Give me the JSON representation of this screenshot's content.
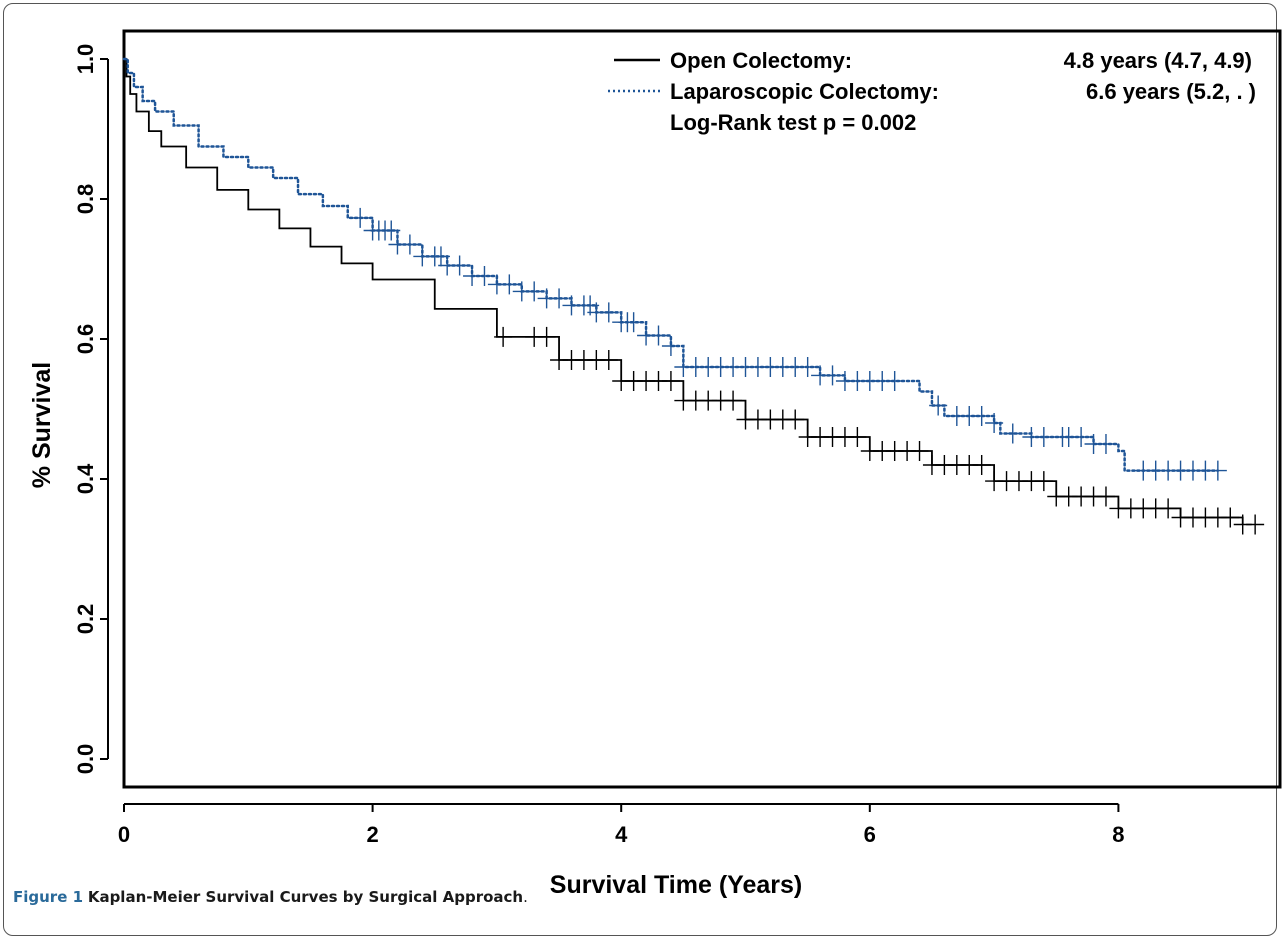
{
  "chart_data": {
    "type": "line",
    "xlabel": "Survival Time (Years)",
    "ylabel": "% Survival",
    "xlim": [
      0,
      9.3
    ],
    "ylim": [
      -0.04,
      1.04
    ],
    "xticks": [
      "0",
      "2",
      "4",
      "6",
      "8"
    ],
    "yticks": [
      "0.0",
      "0.2",
      "0.4",
      "0.6",
      "0.8",
      "1.0"
    ],
    "grid": false,
    "legend_position": "top-right",
    "annotation": "Log-Rank test p = 0.002",
    "series": [
      {
        "name": "Open Colectomy:",
        "median_label": "4.8 years (4.7, 4.9)",
        "color": "#000000",
        "style": "solid",
        "x": [
          0,
          0.02,
          0.05,
          0.1,
          0.2,
          0.3,
          0.5,
          0.75,
          1.0,
          1.25,
          1.5,
          1.75,
          2.0,
          2.5,
          3.0,
          3.5,
          4.0,
          4.5,
          5.0,
          5.5,
          6.0,
          6.5,
          7.0,
          7.5,
          8.0,
          8.5,
          9.0
        ],
        "y": [
          1.0,
          0.975,
          0.95,
          0.925,
          0.897,
          0.875,
          0.845,
          0.813,
          0.785,
          0.758,
          0.732,
          0.708,
          0.685,
          0.643,
          0.603,
          0.57,
          0.54,
          0.512,
          0.485,
          0.46,
          0.44,
          0.42,
          0.397,
          0.375,
          0.358,
          0.345,
          0.335
        ],
        "censor_x": [
          3.05,
          3.3,
          3.4,
          3.5,
          3.6,
          3.7,
          3.8,
          3.9,
          4.0,
          4.1,
          4.2,
          4.3,
          4.4,
          4.5,
          4.6,
          4.7,
          4.8,
          4.9,
          5.0,
          5.1,
          5.2,
          5.3,
          5.4,
          5.5,
          5.6,
          5.7,
          5.8,
          5.9,
          6.0,
          6.1,
          6.2,
          6.3,
          6.4,
          6.5,
          6.6,
          6.7,
          6.8,
          6.9,
          7.0,
          7.1,
          7.2,
          7.3,
          7.4,
          7.5,
          7.6,
          7.7,
          7.8,
          7.9,
          8.0,
          8.1,
          8.2,
          8.3,
          8.4,
          8.5,
          8.6,
          8.7,
          8.8,
          8.9,
          9.0,
          9.1
        ]
      },
      {
        "name": "Laparoscopic Colectomy:",
        "median_label": "6.6 years (5.2, . )",
        "color": "#1f5597",
        "style": "dotted",
        "x": [
          0,
          0.03,
          0.08,
          0.15,
          0.25,
          0.4,
          0.6,
          0.8,
          1.0,
          1.2,
          1.4,
          1.6,
          1.8,
          2.0,
          2.2,
          2.4,
          2.6,
          2.8,
          3.0,
          3.2,
          3.4,
          3.6,
          3.8,
          4.0,
          4.2,
          4.4,
          4.5,
          5.0,
          5.6,
          5.8,
          6.3,
          6.4,
          6.5,
          6.6,
          6.8,
          7.0,
          7.05,
          7.3,
          7.5,
          7.8,
          8.0,
          8.05,
          8.8
        ],
        "y": [
          1.0,
          0.98,
          0.96,
          0.94,
          0.925,
          0.905,
          0.875,
          0.86,
          0.845,
          0.83,
          0.807,
          0.79,
          0.773,
          0.755,
          0.735,
          0.718,
          0.705,
          0.69,
          0.678,
          0.668,
          0.658,
          0.648,
          0.638,
          0.624,
          0.605,
          0.59,
          0.56,
          0.56,
          0.548,
          0.54,
          0.54,
          0.525,
          0.505,
          0.49,
          0.49,
          0.48,
          0.465,
          0.46,
          0.46,
          0.45,
          0.44,
          0.412,
          0.412
        ],
        "censor_x": [
          1.9,
          2.0,
          2.05,
          2.1,
          2.15,
          2.2,
          2.3,
          2.4,
          2.5,
          2.55,
          2.6,
          2.7,
          2.8,
          2.9,
          3.0,
          3.1,
          3.2,
          3.3,
          3.4,
          3.5,
          3.6,
          3.7,
          3.75,
          3.8,
          3.9,
          4.0,
          4.05,
          4.1,
          4.2,
          4.3,
          4.4,
          4.5,
          4.6,
          4.7,
          4.8,
          4.9,
          5.0,
          5.1,
          5.2,
          5.3,
          5.4,
          5.5,
          5.6,
          5.7,
          5.8,
          5.9,
          6.0,
          6.1,
          6.2,
          6.55,
          6.7,
          6.8,
          6.9,
          7.0,
          7.15,
          7.3,
          7.4,
          7.55,
          7.6,
          7.7,
          7.8,
          7.9,
          8.2,
          8.3,
          8.4,
          8.5,
          8.6,
          8.7,
          8.8
        ]
      }
    ]
  },
  "caption": {
    "label": "Figure 1",
    "title": "Kaplan-Meier Survival Curves by Surgical Approach",
    "period": "."
  }
}
